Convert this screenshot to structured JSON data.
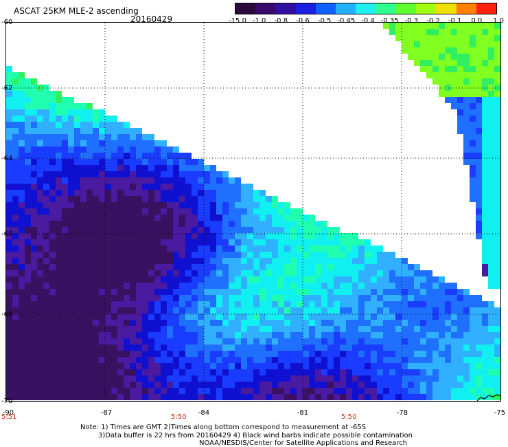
{
  "header": {
    "title": "ASCAT 25KM MLE-2 ascending",
    "date": "20160429"
  },
  "colorbar": {
    "labels": [
      "-15.0",
      "-1.0",
      "-0.8",
      "-0.6",
      "-0.5",
      "-0.45",
      "-0.4",
      "-0.35",
      "-0.3",
      "-0.2",
      "-0.1",
      "0.0",
      "1.0"
    ],
    "colors": [
      "#2a0a3a",
      "#3a0a6a",
      "#3010a0",
      "#1a20e0",
      "#1060ff",
      "#20b0ff",
      "#20f0f0",
      "#30ff90",
      "#60ff30",
      "#a0ff10",
      "#f0e000",
      "#ff8000",
      "#ff2010"
    ]
  },
  "axes": {
    "lat_labels": [
      "-60",
      "-62",
      "-64",
      "-66",
      "-68",
      "-70"
    ],
    "lon_labels": [
      "-90",
      "-87",
      "-84",
      "-81",
      "-78",
      "-75"
    ],
    "time_labels": [
      "5:51",
      "5:50",
      "5:50"
    ]
  },
  "notes": {
    "line1": "Note: 1) Times are GMT 2)Times along bottom correspond to measurement at -65S",
    "line2": "3)Data buffer is 22 hrs from 20160429 4) Black wind barbs indicate possible contamination",
    "line3": "NOAA/NESDIS/Center for Satellite Applications and Research"
  }
}
